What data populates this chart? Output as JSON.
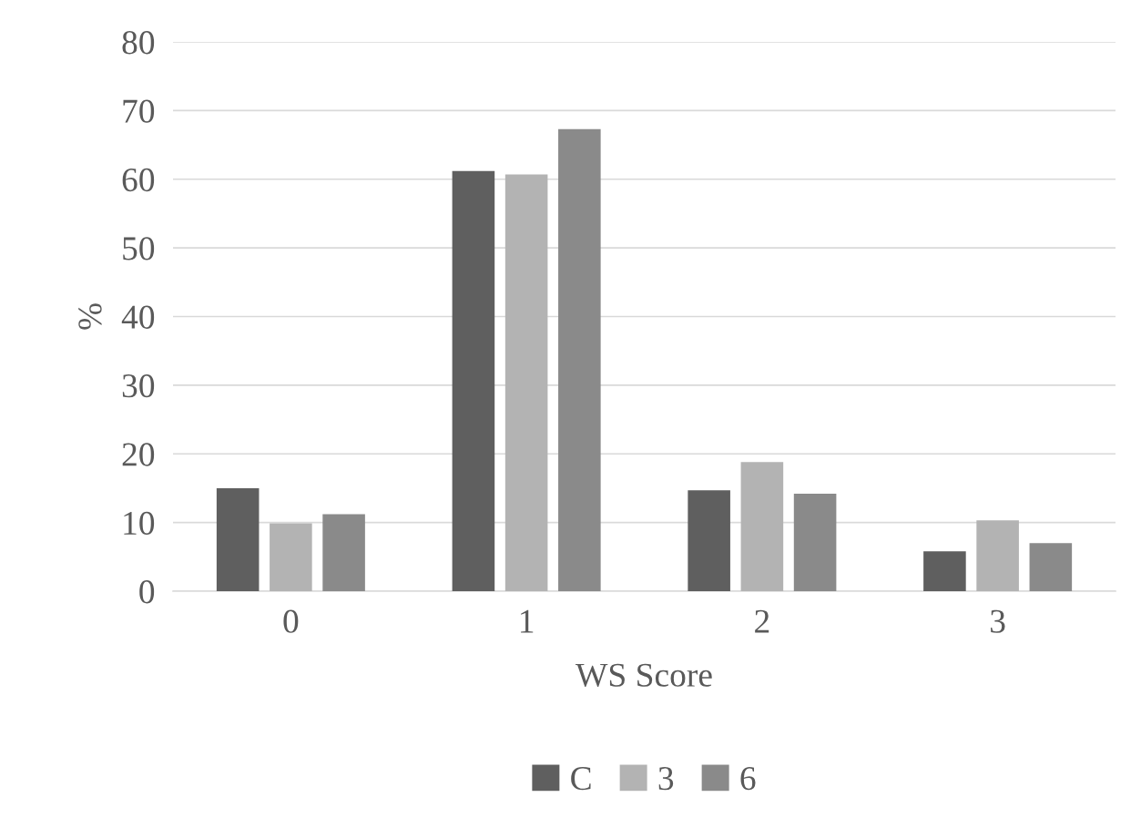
{
  "chart_data": {
    "type": "bar",
    "xlabel": "WS Score",
    "ylabel": "%",
    "categories": [
      "0",
      "1",
      "2",
      "3"
    ],
    "series": [
      {
        "name": "C",
        "color": "#5f5f5f",
        "values": [
          15.0,
          61.2,
          14.7,
          5.8
        ]
      },
      {
        "name": "3",
        "color": "#b3b3b3",
        "values": [
          9.9,
          60.7,
          18.8,
          10.3
        ]
      },
      {
        "name": "6",
        "color": "#8a8a8a",
        "values": [
          11.2,
          67.3,
          14.2,
          7.0
        ]
      }
    ],
    "ylim": [
      0,
      80
    ],
    "yticks": [
      0,
      10,
      20,
      30,
      40,
      50,
      60,
      70,
      80
    ],
    "grid": "y",
    "legend": "bottom"
  }
}
